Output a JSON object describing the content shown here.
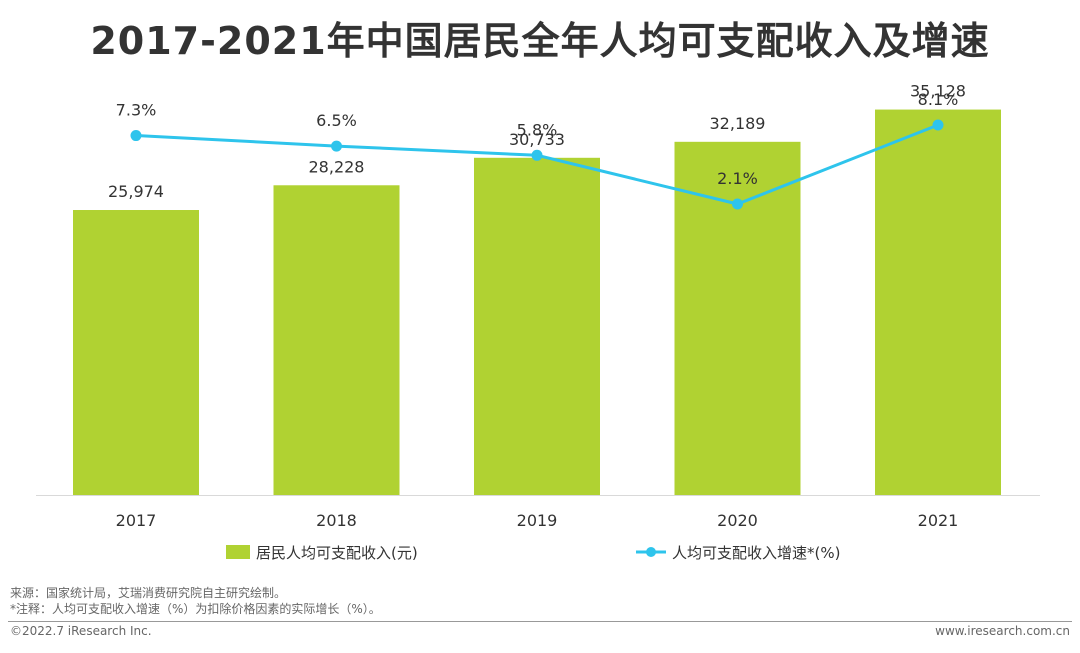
{
  "title": "2017-2021年中国居民全年人均可支配收入及增速",
  "chart_data": {
    "type": "bar",
    "categories": [
      "2017",
      "2018",
      "2019",
      "2020",
      "2021"
    ],
    "series": [
      {
        "name": "居民人均可支配收入(元)",
        "type": "bar",
        "values": [
          25974,
          28228,
          30733,
          32189,
          35128
        ],
        "labels": [
          "25,974",
          "28,228",
          "30,733",
          "32,189",
          "35,128"
        ],
        "color": "#b0d232"
      },
      {
        "name": "人均可支配收入增速*(%)",
        "type": "line",
        "values": [
          7.3,
          6.5,
          5.8,
          2.1,
          8.1
        ],
        "labels": [
          "7.3%",
          "6.5%",
          "5.8%",
          "2.1%",
          "8.1%"
        ],
        "color": "#2ec4ec"
      }
    ],
    "ylim": [
      0,
      36000
    ],
    "y2lim": [
      -20,
      10
    ],
    "legend": "bottom"
  },
  "notes": {
    "source": "来源：国家统计局，艾瑞消费研究院自主研究绘制。",
    "note": "*注释：人均可支配收入增速（%）为扣除价格因素的实际增长（%）。"
  },
  "footer": {
    "copyright": "©2022.7 iResearch Inc.",
    "website": "www.iresearch.com.cn"
  }
}
